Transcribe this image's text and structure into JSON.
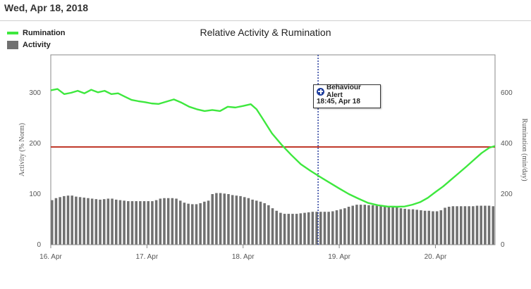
{
  "header": {
    "date": "Wed, Apr 18, 2018"
  },
  "legend": {
    "rumination_label": "Rumination",
    "activity_label": "Activity"
  },
  "colors": {
    "rumination": "#3ee83e",
    "activity": "#707070",
    "threshold": "#c0392b",
    "alert_line": "#2a3f9e"
  },
  "chart_data": {
    "type": "bar+line",
    "title": "Relative Activity & Rumination",
    "ylabel_left": "Activity (% Norm)",
    "ylabel_right": "Rumination (min/day)",
    "x_ticks": [
      "16. Apr",
      "17. Apr",
      "18. Apr",
      "19. Apr",
      "20. Apr"
    ],
    "x_range": [
      16.0,
      20.62
    ],
    "y_left_ticks": [
      "0",
      "100",
      "200",
      "300"
    ],
    "y_left_range": [
      0,
      375
    ],
    "y_right_ticks": [
      "0",
      "200",
      "400",
      "600"
    ],
    "y_right_range": [
      0,
      750
    ],
    "grid": false,
    "threshold_activity": 193,
    "alert": {
      "label": "Behaviour Alert",
      "time": "18:45, Apr 18",
      "x": 18.78
    },
    "activity_start_x": 16.0,
    "activity_step_days": 0.0417,
    "activity_values": [
      88,
      92,
      94,
      96,
      97,
      97,
      95,
      94,
      93,
      92,
      91,
      90,
      89,
      90,
      91,
      91,
      89,
      88,
      87,
      86,
      86,
      86,
      86,
      86,
      86,
      86,
      88,
      91,
      92,
      92,
      92,
      91,
      87,
      83,
      81,
      80,
      80,
      82,
      85,
      87,
      100,
      102,
      102,
      101,
      100,
      98,
      97,
      96,
      94,
      92,
      89,
      87,
      85,
      82,
      78,
      72,
      67,
      63,
      61,
      61,
      61,
      61,
      62,
      63,
      64,
      65,
      65,
      65,
      65,
      65,
      66,
      68,
      70,
      72,
      75,
      77,
      79,
      79,
      79,
      78,
      78,
      77,
      76,
      76,
      75,
      75,
      74,
      72,
      71,
      70,
      70,
      69,
      68,
      67,
      67,
      66,
      66,
      68,
      73,
      75,
      76,
      76,
      76,
      76,
      76,
      76,
      77,
      77,
      77,
      77,
      76,
      76,
      76,
      75,
      75
    ],
    "rumination_points": [
      [
        16.0,
        610
      ],
      [
        16.07,
        615
      ],
      [
        16.14,
        595
      ],
      [
        16.21,
        600
      ],
      [
        16.28,
        608
      ],
      [
        16.35,
        598
      ],
      [
        16.42,
        612
      ],
      [
        16.49,
        602
      ],
      [
        16.56,
        608
      ],
      [
        16.63,
        595
      ],
      [
        16.7,
        598
      ],
      [
        16.77,
        585
      ],
      [
        16.84,
        572
      ],
      [
        16.91,
        567
      ],
      [
        16.98,
        563
      ],
      [
        17.05,
        558
      ],
      [
        17.12,
        556
      ],
      [
        17.2,
        565
      ],
      [
        17.28,
        574
      ],
      [
        17.36,
        561
      ],
      [
        17.44,
        545
      ],
      [
        17.52,
        535
      ],
      [
        17.6,
        528
      ],
      [
        17.68,
        532
      ],
      [
        17.76,
        528
      ],
      [
        17.84,
        545
      ],
      [
        17.92,
        542
      ],
      [
        18.0,
        548
      ],
      [
        18.08,
        555
      ],
      [
        18.14,
        535
      ],
      [
        18.2,
        500
      ],
      [
        18.3,
        440
      ],
      [
        18.4,
        395
      ],
      [
        18.5,
        355
      ],
      [
        18.6,
        318
      ],
      [
        18.7,
        292
      ],
      [
        18.8,
        268
      ],
      [
        18.9,
        245
      ],
      [
        19.0,
        222
      ],
      [
        19.1,
        200
      ],
      [
        19.2,
        182
      ],
      [
        19.3,
        165
      ],
      [
        19.4,
        156
      ],
      [
        19.5,
        151
      ],
      [
        19.6,
        150
      ],
      [
        19.68,
        151
      ],
      [
        19.76,
        158
      ],
      [
        19.84,
        168
      ],
      [
        19.92,
        185
      ],
      [
        20.0,
        208
      ],
      [
        20.08,
        230
      ],
      [
        20.16,
        256
      ],
      [
        20.24,
        282
      ],
      [
        20.32,
        308
      ],
      [
        20.4,
        335
      ],
      [
        20.48,
        362
      ],
      [
        20.56,
        383
      ],
      [
        20.62,
        390
      ]
    ]
  }
}
